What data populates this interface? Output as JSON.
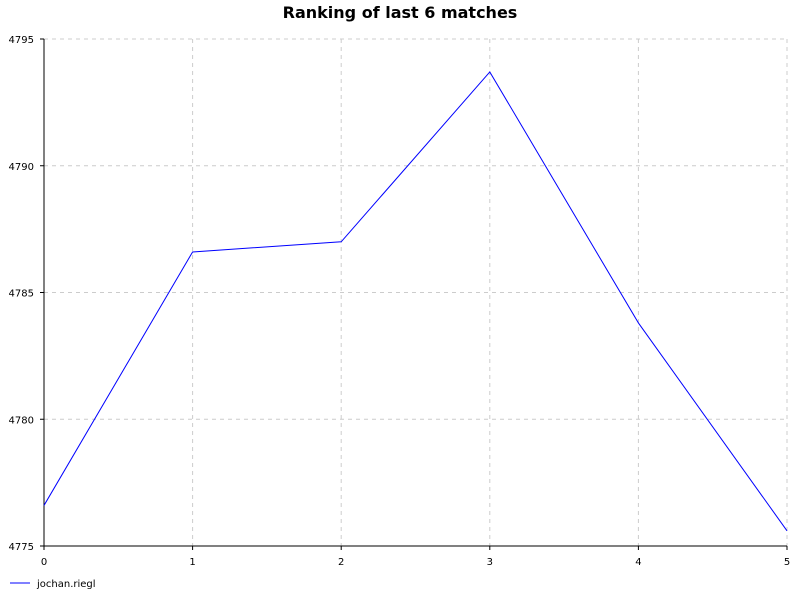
{
  "chart_data": {
    "type": "line",
    "title": "Ranking of last 6 matches",
    "xlabel": "",
    "ylabel": "",
    "x": [
      0,
      1,
      2,
      3,
      4,
      5
    ],
    "xlim": [
      0,
      5
    ],
    "ylim": [
      4775,
      4795
    ],
    "x_ticks": [
      "0",
      "1",
      "2",
      "3",
      "4",
      "5"
    ],
    "y_ticks": [
      "4775",
      "4780",
      "4785",
      "4790",
      "4795"
    ],
    "grid": true,
    "legend_position": "bottom-left",
    "series": [
      {
        "name": "jochan.riegl",
        "color": "#0000ff",
        "values": [
          4776.6,
          4786.6,
          4787.0,
          4793.7,
          4783.8,
          4775.6
        ]
      }
    ]
  }
}
